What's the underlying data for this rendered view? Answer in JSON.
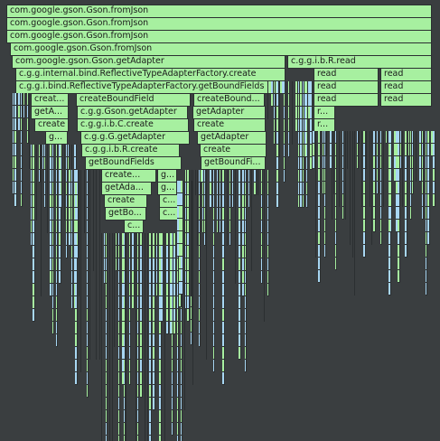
{
  "colors": {
    "background": "#3a3e40",
    "frame_green": "#a7f0a0",
    "frame_blue": "#a8d7f3",
    "frame_border": "#2b2f31"
  },
  "flamegraph": {
    "labeled_frames": [
      {
        "label": "com.google.gson.Gson.fromJson"
      },
      {
        "label": "com.google.gson.Gson.fromJson"
      },
      {
        "label": "com.google.gson.Gson.fromJson"
      },
      {
        "label": "com.google.gson.Gson.fromJson"
      },
      {
        "label": "com.google.gson.Gson.getAdapter"
      },
      {
        "label": "c.g.g.i.b.R.read"
      },
      {
        "label": "c.g.g.internal.bind.ReflectiveTypeAdapterFactory.create"
      },
      {
        "label": "read"
      },
      {
        "label": "read"
      },
      {
        "label": "c.g.g.i.bind.ReflectiveTypeAdapterFactory.getBoundFields"
      },
      {
        "label": "read"
      },
      {
        "label": "read"
      },
      {
        "label": "creat..."
      },
      {
        "label": "createBoundField"
      },
      {
        "label": "createBound..."
      },
      {
        "label": "read"
      },
      {
        "label": "read"
      },
      {
        "label": "getA..."
      },
      {
        "label": "c.g.g.Gson.getAdapter"
      },
      {
        "label": "getAdapter"
      },
      {
        "label": "r..."
      },
      {
        "label": "create"
      },
      {
        "label": "c.g.g.i.b.C.create"
      },
      {
        "label": "create"
      },
      {
        "label": "r..."
      },
      {
        "label": "g..."
      },
      {
        "label": "c.g.g.G.getAdapter"
      },
      {
        "label": "getAdapter"
      },
      {
        "label": "c.g.g.i.b.R.create"
      },
      {
        "label": "create"
      },
      {
        "label": "getBoundFields"
      },
      {
        "label": "getBoundFi..."
      },
      {
        "label": "create..."
      },
      {
        "label": "g..."
      },
      {
        "label": "getAda..."
      },
      {
        "label": "g..."
      },
      {
        "label": "create"
      },
      {
        "label": "c..."
      },
      {
        "label": "getBo..."
      },
      {
        "label": "c..."
      },
      {
        "label": "c..."
      }
    ]
  }
}
